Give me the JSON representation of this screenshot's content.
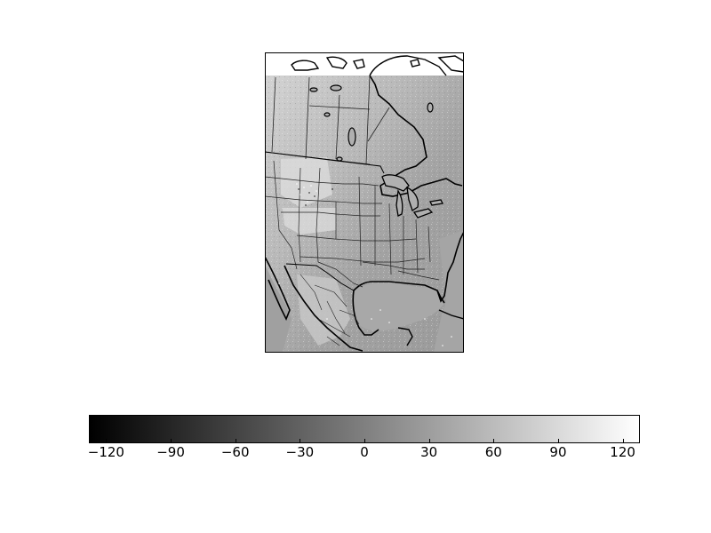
{
  "map": {
    "fill_light": "#cfcfcf",
    "fill_mid": "#9d9d9d",
    "fill_dark": "#888888",
    "water_color": "#a9a9a9",
    "border_color": "#000000"
  },
  "colorbar": {
    "min": -128,
    "max": 128,
    "ticks": [
      -120,
      -90,
      -60,
      -30,
      0,
      30,
      60,
      90,
      120
    ],
    "tick_labels": [
      "−120",
      "−90",
      "−60",
      "−30",
      "0",
      "30",
      "60",
      "90",
      "120"
    ],
    "colormap": "gray",
    "color_low": "#000000",
    "color_high": "#ffffff"
  }
}
